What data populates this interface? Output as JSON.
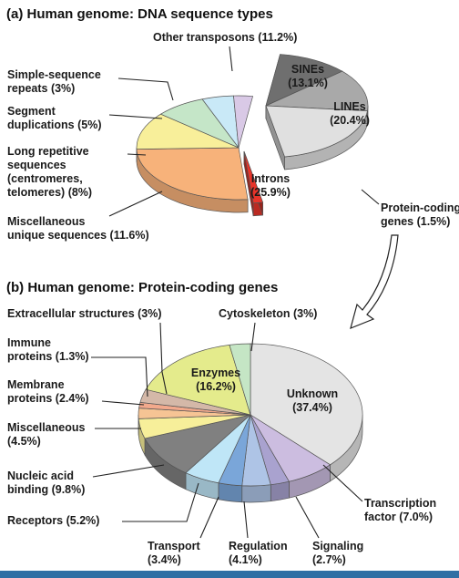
{
  "chart_data": [
    {
      "type": "pie",
      "panel": "a",
      "title": "(a) Human genome: DNA sequence types",
      "slices": [
        {
          "name": "Other transposons (11.2%)",
          "value": 11.2,
          "color": "#6f6f6f"
        },
        {
          "name": "SINEs (13.1%)",
          "value": 13.1,
          "color": "#a9a9a9"
        },
        {
          "name": "LINEs (20.4%)",
          "value": 20.4,
          "color": "#e0e0e0"
        },
        {
          "name": "Protein-coding genes (1.5%)",
          "value": 1.5,
          "color": "#e8342a"
        },
        {
          "name": "Introns (25.9%)",
          "value": 25.9,
          "color": "#f7b27a"
        },
        {
          "name": "Miscellaneous unique sequences (11.6%)",
          "value": 11.6,
          "color": "#f8ef9a"
        },
        {
          "name": "Long repetitive sequences (centromeres, telomeres) (8%)",
          "value": 8,
          "color": "#c5e6c8"
        },
        {
          "name": "Segment duplications (5%)",
          "value": 5,
          "color": "#c9e9f7"
        },
        {
          "name": "Simple-sequence repeats (3%)",
          "value": 3,
          "color": "#d9c9e6"
        }
      ]
    },
    {
      "type": "pie",
      "panel": "b",
      "title": "(b) Human genome: Protein-coding genes",
      "slices": [
        {
          "name": "Unknown (37.4%)",
          "value": 37.4,
          "color": "#e4e4e4"
        },
        {
          "name": "Transcription factor (7.0%)",
          "value": 7.0,
          "color": "#ccbde0"
        },
        {
          "name": "Signaling (2.7%)",
          "value": 2.7,
          "color": "#a9a2cf"
        },
        {
          "name": "Regulation (4.1%)",
          "value": 4.1,
          "color": "#aec4e6"
        },
        {
          "name": "Transport (3.4%)",
          "value": 3.4,
          "color": "#7aa6d9"
        },
        {
          "name": "Receptors (5.2%)",
          "value": 5.2,
          "color": "#bfe6f7"
        },
        {
          "name": "Nucleic acid binding (9.8%)",
          "value": 9.8,
          "color": "#808080"
        },
        {
          "name": "Miscellaneous (4.5%)",
          "value": 4.5,
          "color": "#f7ef9a"
        },
        {
          "name": "Membrane proteins (2.4%)",
          "value": 2.4,
          "color": "#f6c494"
        },
        {
          "name": "Immune proteins (1.3%)",
          "value": 1.3,
          "color": "#f2a98c"
        },
        {
          "name": "Extracellular structures (3%)",
          "value": 3,
          "color": "#d4b8a8"
        },
        {
          "name": "Enzymes (16.2%)",
          "value": 16.2,
          "color": "#e4eb8c"
        },
        {
          "name": "Cytoskeleton (3%)",
          "value": 3,
          "color": "#c5e6c5"
        }
      ]
    }
  ]
}
